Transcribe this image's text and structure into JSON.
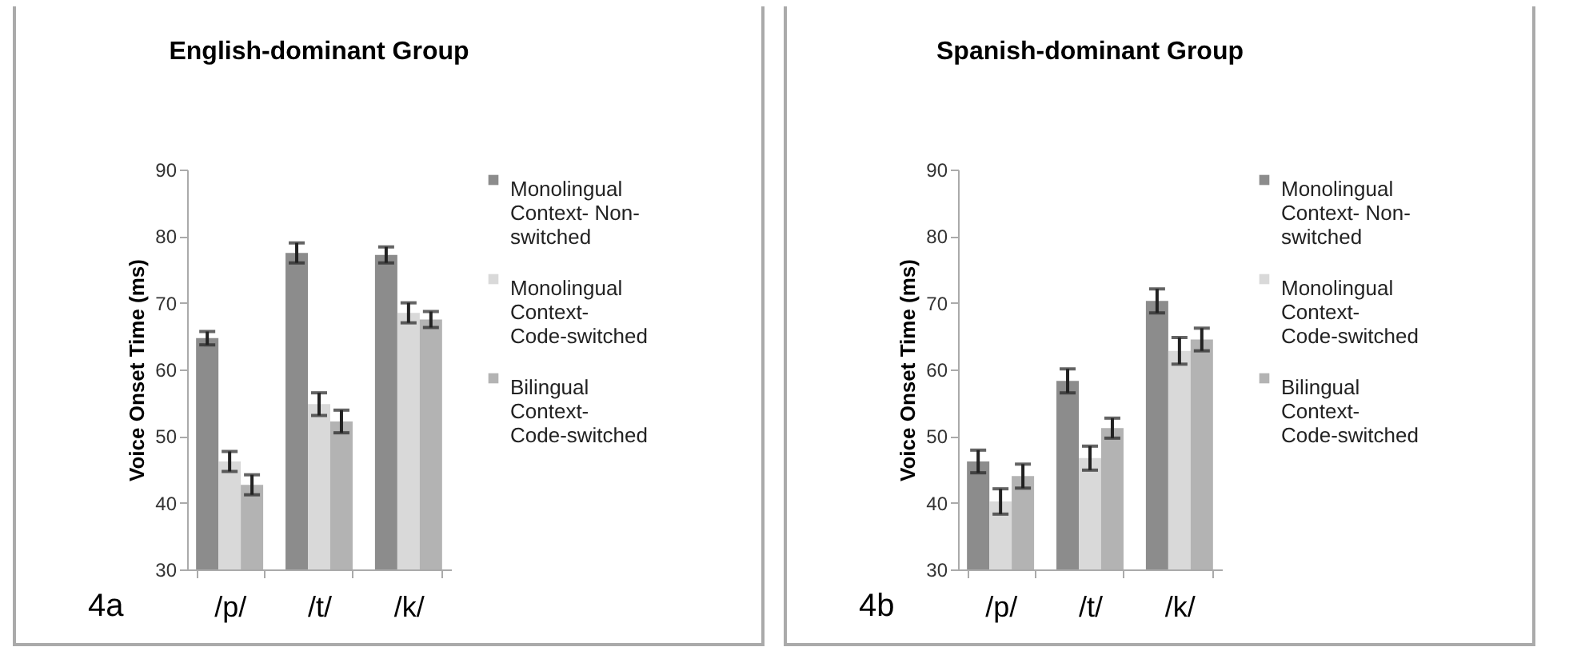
{
  "chart_data": [
    {
      "type": "bar",
      "title": "English-dominant Group",
      "ylabel": "Voice Onset Time (ms)",
      "categories": [
        "/p/",
        "/t/",
        "/k/"
      ],
      "ylim": [
        30,
        90
      ],
      "yticks": [
        30,
        40,
        50,
        60,
        70,
        80,
        90
      ],
      "grid": false,
      "legend": "right",
      "annotations": [
        "4a"
      ],
      "series": [
        {
          "name": "Monolingual Context- Non-switched",
          "color": "#8c8c8c",
          "values": [
            64.7,
            77.5,
            77.2
          ],
          "errors": [
            1,
            1.5,
            1.2
          ]
        },
        {
          "name": "Monolingual Context- Code-switched",
          "color": "#d9d9d9",
          "values": [
            46.2,
            54.8,
            68.5
          ],
          "errors": [
            1.5,
            1.7,
            1.5
          ]
        },
        {
          "name": "Bilingual Context- Code-switched",
          "color": "#b3b3b3",
          "values": [
            42.7,
            52.2,
            67.5
          ],
          "errors": [
            1.5,
            1.7,
            1.2
          ]
        }
      ]
    },
    {
      "type": "bar",
      "title": "Spanish-dominant Group",
      "ylabel": "Voice Onset Time (ms)",
      "categories": [
        "/p/",
        "/t/",
        "/k/"
      ],
      "ylim": [
        30,
        90
      ],
      "yticks": [
        30,
        40,
        50,
        60,
        70,
        80,
        90
      ],
      "grid": false,
      "legend": "right",
      "annotations": [
        "4b"
      ],
      "series": [
        {
          "name": "Monolingual Context- Non-switched",
          "color": "#8c8c8c",
          "values": [
            46.2,
            58.3,
            70.3
          ],
          "errors": [
            1.7,
            1.8,
            1.8
          ]
        },
        {
          "name": "Monolingual Context- Code-switched",
          "color": "#d9d9d9",
          "values": [
            40.2,
            46.7,
            62.8
          ],
          "errors": [
            1.9,
            1.8,
            2
          ]
        },
        {
          "name": "Bilingual Context- Code-switched",
          "color": "#b3b3b3",
          "values": [
            44,
            51.2,
            64.5
          ],
          "errors": [
            1.8,
            1.5,
            1.7
          ]
        }
      ]
    }
  ]
}
